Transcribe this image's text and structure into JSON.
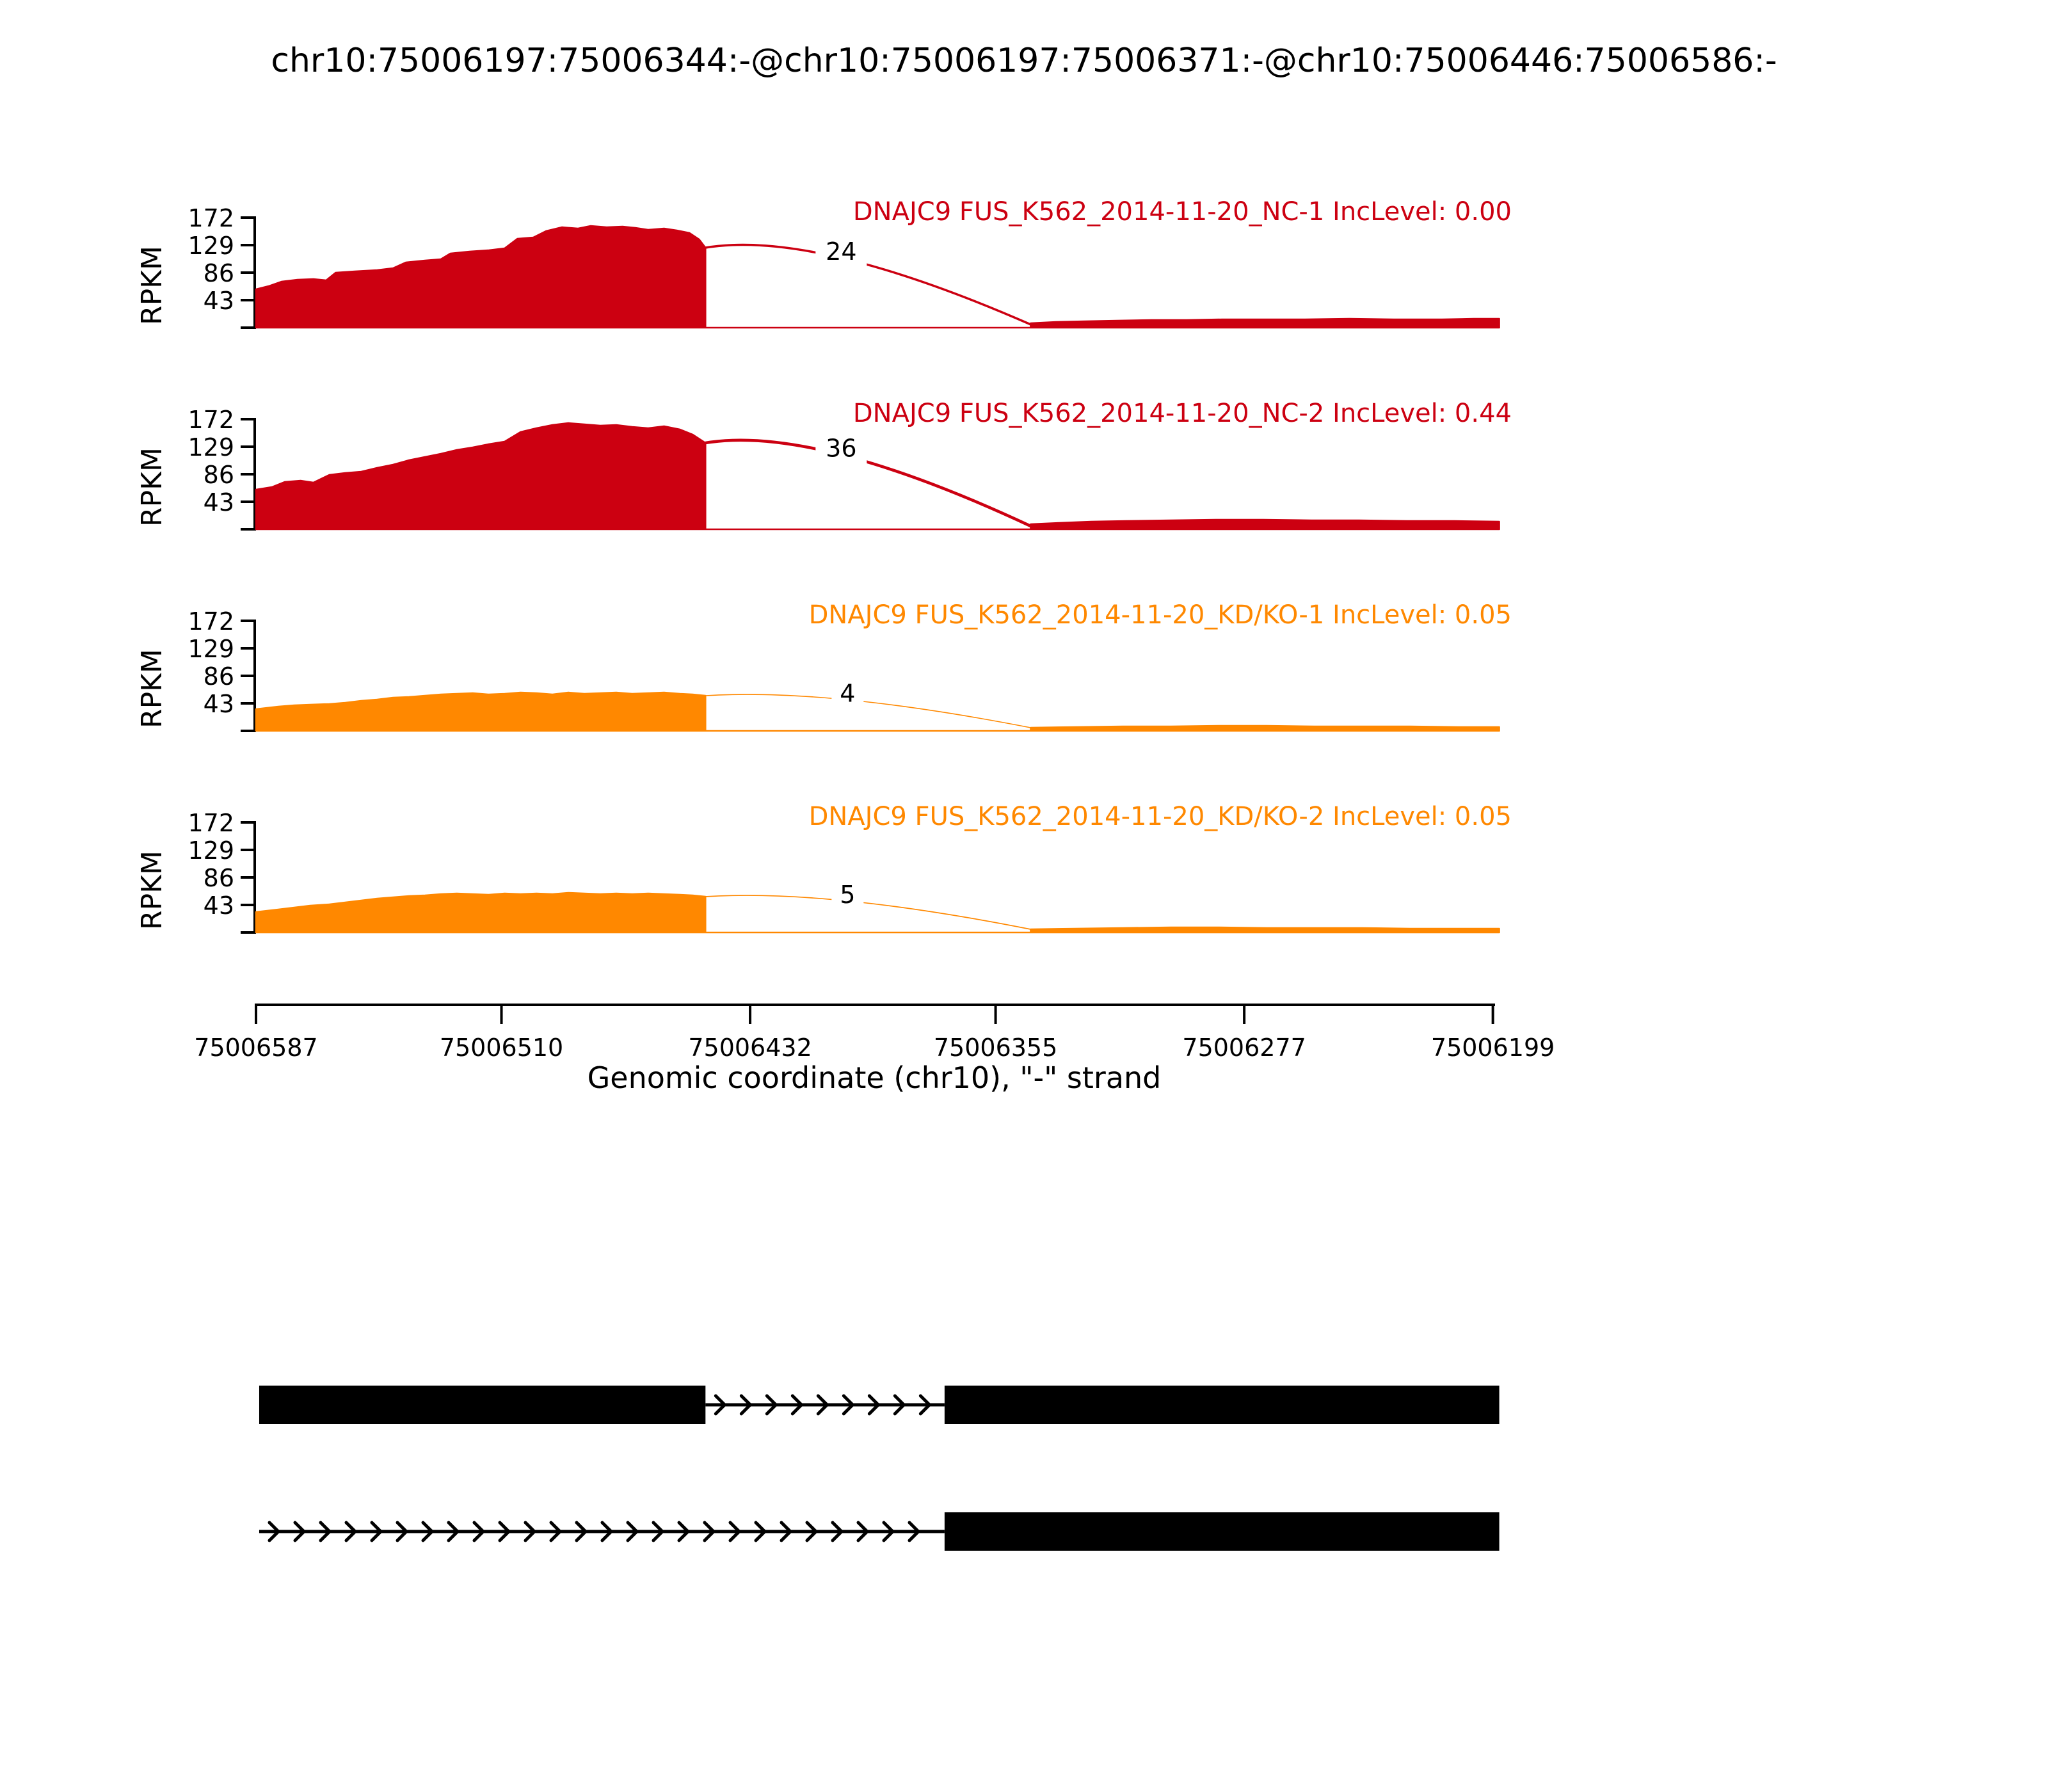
{
  "chart_data": {
    "type": "area",
    "variant": "sashimi-splicing-plot",
    "title": "chr10:75006197:75006344:-@chr10:75006197:75006371:-@chr10:75006446:75006586:-",
    "xlabel": "Genomic coordinate (chr10), \"-\" strand",
    "ylabel": "RPKM",
    "strand": "-",
    "x_ticks": [
      75006587,
      75006510,
      75006432,
      75006355,
      75006277,
      75006199
    ],
    "y_ticks": [
      43,
      86,
      129,
      172
    ],
    "y_max": 172,
    "x_descending": true,
    "grid": false,
    "colors": {
      "group1": "#CC0011",
      "group2": "#FF8800",
      "annotation": "#000000"
    },
    "tracks": [
      {
        "gene": "DNAJC9",
        "sample": "FUS_K562_2014-11-20_NC-1",
        "inc_label": "IncLevel:",
        "inc_level": "0.00",
        "color": "#CC0011",
        "junction": {
          "reads": 24,
          "from_bp": 75006446,
          "to_bp": 75006344
        },
        "coverage_left": [
          [
            75006587,
            60
          ],
          [
            75006583,
            65
          ],
          [
            75006579,
            72
          ],
          [
            75006574,
            75
          ],
          [
            75006569,
            76
          ],
          [
            75006565,
            74
          ],
          [
            75006562,
            86
          ],
          [
            75006556,
            88
          ],
          [
            75006549,
            90
          ],
          [
            75006544,
            93
          ],
          [
            75006540,
            102
          ],
          [
            75006534,
            105
          ],
          [
            75006529,
            107
          ],
          [
            75006526,
            116
          ],
          [
            75006520,
            119
          ],
          [
            75006514,
            121
          ],
          [
            75006509,
            124
          ],
          [
            75006505,
            139
          ],
          [
            75006500,
            141
          ],
          [
            75006496,
            151
          ],
          [
            75006491,
            157
          ],
          [
            75006486,
            155
          ],
          [
            75006482,
            159
          ],
          [
            75006477,
            157
          ],
          [
            75006472,
            158
          ],
          [
            75006468,
            156
          ],
          [
            75006464,
            153
          ],
          [
            75006459,
            155
          ],
          [
            75006455,
            152
          ],
          [
            75006451,
            148
          ],
          [
            75006448,
            138
          ],
          [
            75006446,
            125
          ]
        ],
        "coverage_right": [
          [
            75006344,
            7
          ],
          [
            75006336,
            9
          ],
          [
            75006327,
            10
          ],
          [
            75006317,
            11
          ],
          [
            75006306,
            12
          ],
          [
            75006295,
            12
          ],
          [
            75006284,
            13
          ],
          [
            75006272,
            13
          ],
          [
            75006258,
            13
          ],
          [
            75006244,
            14
          ],
          [
            75006230,
            13
          ],
          [
            75006215,
            13
          ],
          [
            75006205,
            14
          ],
          [
            75006197,
            14
          ]
        ]
      },
      {
        "gene": "DNAJC9",
        "sample": "FUS_K562_2014-11-20_NC-2",
        "inc_label": "IncLevel:",
        "inc_level": "0.44",
        "color": "#CC0011",
        "junction": {
          "reads": 36,
          "from_bp": 75006446,
          "to_bp": 75006344
        },
        "coverage_left": [
          [
            75006587,
            62
          ],
          [
            75006582,
            66
          ],
          [
            75006578,
            74
          ],
          [
            75006573,
            76
          ],
          [
            75006569,
            73
          ],
          [
            75006564,
            85
          ],
          [
            75006559,
            88
          ],
          [
            75006554,
            90
          ],
          [
            75006549,
            96
          ],
          [
            75006544,
            101
          ],
          [
            75006539,
            108
          ],
          [
            75006534,
            113
          ],
          [
            75006529,
            118
          ],
          [
            75006524,
            124
          ],
          [
            75006519,
            128
          ],
          [
            75006514,
            133
          ],
          [
            75006509,
            137
          ],
          [
            75006504,
            152
          ],
          [
            75006499,
            158
          ],
          [
            75006494,
            163
          ],
          [
            75006489,
            166
          ],
          [
            75006484,
            164
          ],
          [
            75006479,
            162
          ],
          [
            75006474,
            163
          ],
          [
            75006469,
            160
          ],
          [
            75006464,
            158
          ],
          [
            75006459,
            161
          ],
          [
            75006454,
            156
          ],
          [
            75006450,
            148
          ],
          [
            75006446,
            135
          ]
        ],
        "coverage_right": [
          [
            75006344,
            8
          ],
          [
            75006335,
            10
          ],
          [
            75006325,
            12
          ],
          [
            75006314,
            13
          ],
          [
            75006300,
            14
          ],
          [
            75006286,
            15
          ],
          [
            75006271,
            15
          ],
          [
            75006256,
            14
          ],
          [
            75006241,
            14
          ],
          [
            75006226,
            13
          ],
          [
            75006211,
            13
          ],
          [
            75006197,
            12
          ]
        ]
      },
      {
        "gene": "DNAJC9",
        "sample": "FUS_K562_2014-11-20_KD/KO-1",
        "inc_label": "IncLevel:",
        "inc_level": "0.05",
        "color": "#FF8800",
        "junction": {
          "reads": 4,
          "from_bp": 75006446,
          "to_bp": 75006344
        },
        "coverage_left": [
          [
            75006587,
            34
          ],
          [
            75006580,
            38
          ],
          [
            75006575,
            40
          ],
          [
            75006570,
            41
          ],
          [
            75006564,
            42
          ],
          [
            75006559,
            44
          ],
          [
            75006554,
            47
          ],
          [
            75006549,
            49
          ],
          [
            75006544,
            52
          ],
          [
            75006539,
            53
          ],
          [
            75006534,
            55
          ],
          [
            75006529,
            57
          ],
          [
            75006524,
            58
          ],
          [
            75006519,
            59
          ],
          [
            75006514,
            57
          ],
          [
            75006509,
            58
          ],
          [
            75006504,
            60
          ],
          [
            75006499,
            59
          ],
          [
            75006494,
            57
          ],
          [
            75006489,
            60
          ],
          [
            75006484,
            58
          ],
          [
            75006479,
            59
          ],
          [
            75006474,
            60
          ],
          [
            75006469,
            58
          ],
          [
            75006464,
            59
          ],
          [
            75006459,
            60
          ],
          [
            75006454,
            58
          ],
          [
            75006450,
            57
          ],
          [
            75006446,
            55
          ]
        ],
        "coverage_right": [
          [
            75006344,
            5
          ],
          [
            75006330,
            6
          ],
          [
            75006315,
            7
          ],
          [
            75006300,
            7
          ],
          [
            75006285,
            8
          ],
          [
            75006270,
            8
          ],
          [
            75006255,
            7
          ],
          [
            75006240,
            7
          ],
          [
            75006225,
            7
          ],
          [
            75006210,
            6
          ],
          [
            75006197,
            6
          ]
        ]
      },
      {
        "gene": "DNAJC9",
        "sample": "FUS_K562_2014-11-20_KD/KO-2",
        "inc_label": "IncLevel:",
        "inc_level": "0.05",
        "color": "#FF8800",
        "junction": {
          "reads": 5,
          "from_bp": 75006446,
          "to_bp": 75006344
        },
        "coverage_left": [
          [
            75006587,
            32
          ],
          [
            75006580,
            36
          ],
          [
            75006575,
            39
          ],
          [
            75006570,
            42
          ],
          [
            75006564,
            44
          ],
          [
            75006559,
            47
          ],
          [
            75006554,
            50
          ],
          [
            75006549,
            53
          ],
          [
            75006544,
            55
          ],
          [
            75006539,
            57
          ],
          [
            75006534,
            58
          ],
          [
            75006529,
            60
          ],
          [
            75006524,
            61
          ],
          [
            75006519,
            60
          ],
          [
            75006514,
            59
          ],
          [
            75006509,
            61
          ],
          [
            75006504,
            60
          ],
          [
            75006499,
            61
          ],
          [
            75006494,
            60
          ],
          [
            75006489,
            62
          ],
          [
            75006484,
            61
          ],
          [
            75006479,
            60
          ],
          [
            75006474,
            61
          ],
          [
            75006469,
            60
          ],
          [
            75006464,
            61
          ],
          [
            75006459,
            60
          ],
          [
            75006454,
            59
          ],
          [
            75006450,
            58
          ],
          [
            75006446,
            56
          ]
        ],
        "coverage_right": [
          [
            75006344,
            5
          ],
          [
            75006330,
            6
          ],
          [
            75006315,
            7
          ],
          [
            75006300,
            8
          ],
          [
            75006285,
            8
          ],
          [
            75006270,
            7
          ],
          [
            75006255,
            7
          ],
          [
            75006240,
            7
          ],
          [
            75006225,
            6
          ],
          [
            75006210,
            6
          ],
          [
            75006197,
            6
          ]
        ]
      }
    ],
    "transcripts": [
      {
        "exons_bp": [
          [
            75006446,
            75006586
          ],
          [
            75006197,
            75006371
          ]
        ],
        "arrow_line_bp": [
          75006371,
          75006446
        ]
      },
      {
        "exons_bp": [
          [
            75006197,
            75006371
          ]
        ],
        "arrow_line_bp": [
          75006371,
          75006586
        ]
      }
    ]
  }
}
